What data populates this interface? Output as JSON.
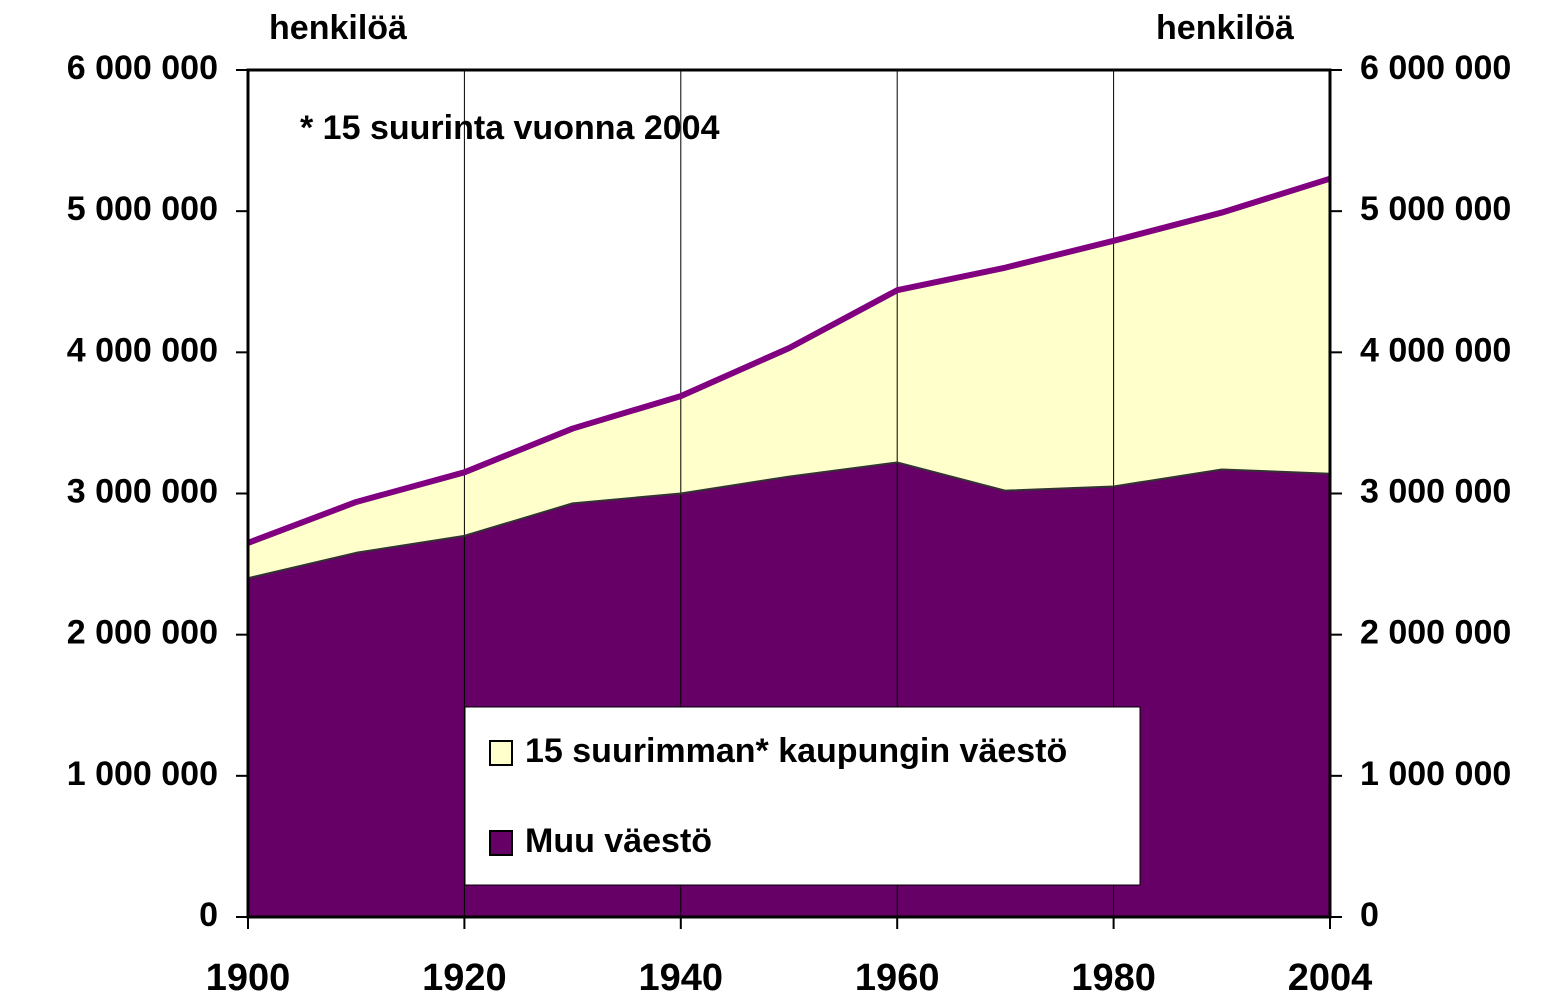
{
  "chart_data": {
    "type": "stacked_area",
    "y_label": "henkilöä",
    "y2_label": "henkilöä",
    "annotation": "* 15 suurinta vuonna 2004",
    "categories": [
      "1900",
      null,
      "1920",
      null,
      "1940",
      null,
      "1960",
      null,
      "1980",
      null,
      "2004"
    ],
    "series": [
      {
        "name": "Muu väestö",
        "color": "#660066",
        "values": [
          2400000,
          2580000,
          2700000,
          2930000,
          3000000,
          3120000,
          3220000,
          3020000,
          3050000,
          3170000,
          3140000
        ]
      },
      {
        "name": "15 suurimman* kaupungin väestö",
        "color": "#ffffcc",
        "values": [
          250000,
          360000,
          450000,
          530000,
          690000,
          910000,
          1220000,
          1580000,
          1740000,
          1820000,
          2090000
        ]
      }
    ],
    "line_color": "#800080",
    "ylim": [
      0,
      6000000
    ],
    "yticks": [
      0,
      {
        "value": 1000000,
        "label": "1 000 000"
      },
      {
        "value": 2000000,
        "label": "2 000 000"
      },
      {
        "value": 3000000,
        "label": "3 000 000"
      },
      {
        "value": 4000000,
        "label": "4 000 000"
      },
      {
        "value": 5000000,
        "label": "5 000 000"
      },
      {
        "value": 6000000,
        "label": "6 000 000"
      }
    ],
    "y2lim": [
      0,
      6000000
    ],
    "y2ticks": [
      0,
      {
        "value": 1000000,
        "label": "1 000 000"
      },
      {
        "value": 2000000,
        "label": "2 000 000"
      },
      {
        "value": 3000000,
        "label": "3 000 000"
      },
      {
        "value": 4000000,
        "label": "4 000 000"
      },
      {
        "value": 5000000,
        "label": "5 000 000"
      },
      {
        "value": 6000000,
        "label": "6 000 000"
      }
    ],
    "grid": "x"
  }
}
